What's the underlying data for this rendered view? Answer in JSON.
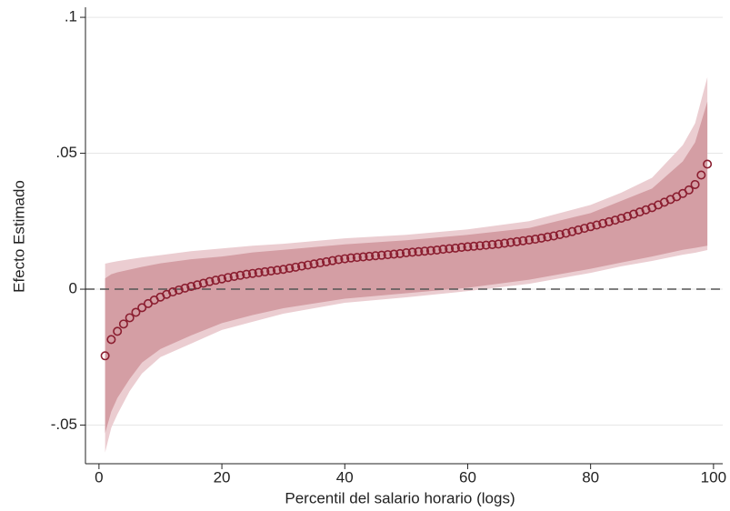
{
  "chart_data": {
    "type": "scatter",
    "xlabel": "Percentil del salario horario (logs)",
    "ylabel": "Efecto Estimado",
    "xlim": [
      -2.2,
      101.5
    ],
    "ylim": [
      -0.0642,
      0.1037
    ],
    "xticks": [
      0,
      20,
      40,
      60,
      80,
      100
    ],
    "yticks": [
      {
        "value": 0.1,
        "label": ".1"
      },
      {
        "value": 0.05,
        "label": ".05"
      },
      0,
      {
        "value": -0.05,
        "label": "-.05"
      }
    ],
    "grid": true,
    "hline": 0,
    "bands": [
      {
        "color": "#ebcdd1",
        "x": [
          1,
          2,
          3,
          5,
          7,
          10,
          15,
          20,
          25,
          30,
          40,
          50,
          60,
          70,
          80,
          85,
          90,
          95,
          97,
          99
        ],
        "lower": [
          -0.06,
          -0.051,
          -0.046,
          -0.0375,
          -0.031,
          -0.025,
          -0.02,
          -0.015,
          -0.012,
          -0.009,
          -0.005,
          -0.003,
          -0.0007,
          0.002,
          0.006,
          0.0084,
          0.0104,
          0.0127,
          0.0134,
          0.0144
        ],
        "upper": [
          0.0094,
          0.0099,
          0.0103,
          0.011,
          0.0117,
          0.0125,
          0.014,
          0.015,
          0.016,
          0.0167,
          0.0187,
          0.02,
          0.022,
          0.025,
          0.031,
          0.0355,
          0.041,
          0.053,
          0.061,
          0.078
        ]
      },
      {
        "color": "#d49ea4",
        "x": [
          1,
          2,
          3,
          5,
          7,
          10,
          15,
          20,
          25,
          30,
          40,
          50,
          60,
          70,
          80,
          85,
          90,
          95,
          97,
          99
        ],
        "lower": [
          -0.053,
          -0.045,
          -0.04,
          -0.033,
          -0.027,
          -0.022,
          -0.017,
          -0.0125,
          -0.0095,
          -0.007,
          -0.0035,
          -0.0015,
          0.0005,
          0.0035,
          0.0075,
          0.0098,
          0.012,
          0.0145,
          0.0152,
          0.016
        ],
        "upper": [
          0.004,
          0.0055,
          0.0062,
          0.0072,
          0.0082,
          0.0095,
          0.011,
          0.012,
          0.0135,
          0.0145,
          0.0165,
          0.018,
          0.02,
          0.0225,
          0.028,
          0.0325,
          0.037,
          0.047,
          0.054,
          0.069
        ]
      }
    ],
    "series": [
      {
        "color": "#8b1e30",
        "x": [
          1,
          2,
          3,
          4,
          5,
          6,
          7,
          8,
          9,
          10,
          11,
          12,
          13,
          14,
          15,
          16,
          17,
          18,
          19,
          20,
          21,
          22,
          23,
          24,
          25,
          26,
          27,
          28,
          29,
          30,
          31,
          32,
          33,
          34,
          35,
          36,
          37,
          38,
          39,
          40,
          41,
          42,
          43,
          44,
          45,
          46,
          47,
          48,
          49,
          50,
          51,
          52,
          53,
          54,
          55,
          56,
          57,
          58,
          59,
          60,
          61,
          62,
          63,
          64,
          65,
          66,
          67,
          68,
          69,
          70,
          71,
          72,
          73,
          74,
          75,
          76,
          77,
          78,
          79,
          80,
          81,
          82,
          83,
          84,
          85,
          86,
          87,
          88,
          89,
          90,
          91,
          92,
          93,
          94,
          95,
          96,
          97,
          98,
          99
        ],
        "values": [
          -0.0245,
          -0.0185,
          -0.0155,
          -0.0128,
          -0.0105,
          -0.0085,
          -0.0068,
          -0.0053,
          -0.004,
          -0.0029,
          -0.0019,
          -0.001,
          -0.0003,
          0.0004,
          0.001,
          0.0016,
          0.0022,
          0.0028,
          0.0033,
          0.0038,
          0.0043,
          0.0047,
          0.0051,
          0.0055,
          0.0058,
          0.0061,
          0.0064,
          0.0067,
          0.007,
          0.0073,
          0.0077,
          0.0081,
          0.0085,
          0.0089,
          0.0093,
          0.0097,
          0.0101,
          0.0105,
          0.0109,
          0.0112,
          0.0115,
          0.0117,
          0.0119,
          0.0121,
          0.0123,
          0.0125,
          0.0127,
          0.0129,
          0.0131,
          0.0134,
          0.0136,
          0.0138,
          0.014,
          0.0142,
          0.0144,
          0.0147,
          0.0149,
          0.0151,
          0.0154,
          0.0156,
          0.0158,
          0.016,
          0.0162,
          0.0164,
          0.0166,
          0.0169,
          0.0172,
          0.0175,
          0.0178,
          0.0181,
          0.0184,
          0.0188,
          0.0192,
          0.0196,
          0.0201,
          0.0206,
          0.0212,
          0.0218,
          0.0224,
          0.023,
          0.0236,
          0.0242,
          0.0248,
          0.0254,
          0.0261,
          0.0268,
          0.0276,
          0.0284,
          0.0292,
          0.03,
          0.031,
          0.032,
          0.033,
          0.034,
          0.0352,
          0.0365,
          0.0385,
          0.042,
          0.046
        ]
      }
    ]
  }
}
